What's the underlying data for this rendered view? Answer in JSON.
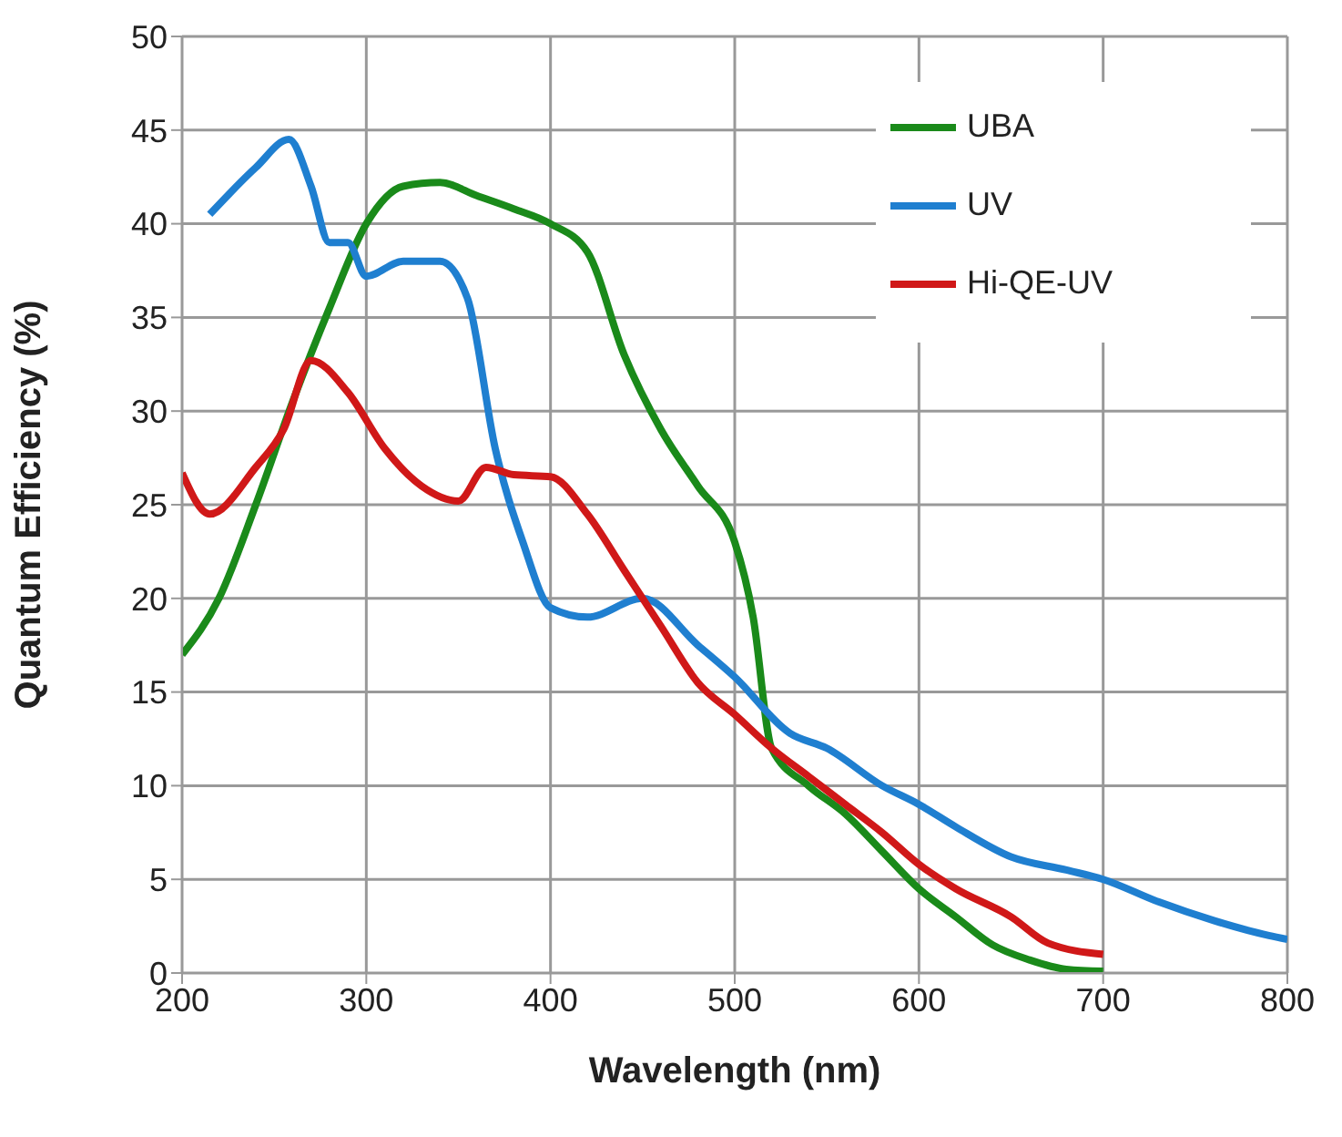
{
  "chart_data": {
    "type": "line",
    "xlabel": "Wavelength (nm)",
    "ylabel": "Quantum Efficiency (%)",
    "xlim": [
      200,
      800
    ],
    "xticks": [
      200,
      300,
      400,
      500,
      600,
      700,
      800
    ],
    "ylim": [
      0,
      50
    ],
    "yticks": [
      0,
      5,
      10,
      15,
      20,
      25,
      30,
      35,
      40,
      45,
      50
    ],
    "grid": true,
    "legend": "top right",
    "marker": "none",
    "line_style": "solid",
    "series": [
      {
        "name": "UBA",
        "color": "#1a8a1a",
        "x": [
          200,
          220,
          240,
          260,
          280,
          300,
          320,
          340,
          360,
          380,
          400,
          420,
          440,
          460,
          480,
          500,
          510,
          520,
          540,
          560,
          580,
          600,
          620,
          640,
          660,
          680,
          700
        ],
        "values": [
          17,
          20,
          25,
          30.5,
          35.5,
          40,
          42,
          42.2,
          41.5,
          40.8,
          40,
          38.5,
          33,
          29,
          26,
          23,
          19,
          12,
          10,
          8.5,
          6.5,
          4.5,
          3,
          1.5,
          0.7,
          0.2,
          0.1
        ]
      },
      {
        "name": "UV",
        "color": "#1f7fd0",
        "x": [
          215,
          240,
          258,
          270,
          280,
          290,
          300,
          320,
          340,
          355,
          370,
          385,
          400,
          420,
          450,
          480,
          500,
          530,
          550,
          580,
          600,
          620,
          650,
          680,
          700,
          730,
          760,
          790,
          800
        ],
        "values": [
          40.5,
          43,
          44.5,
          42,
          39,
          39,
          37.2,
          38,
          38,
          36,
          28,
          23,
          19.5,
          19,
          20,
          17.5,
          15.8,
          12.8,
          12,
          10,
          9,
          7.8,
          6.2,
          5.5,
          5,
          3.8,
          2.8,
          2,
          1.8
        ]
      },
      {
        "name": "Hi-QE-UV",
        "color": "#d01818",
        "x": [
          200,
          215,
          240,
          255,
          270,
          290,
          310,
          330,
          350,
          365,
          380,
          400,
          420,
          440,
          460,
          480,
          500,
          520,
          540,
          560,
          580,
          600,
          620,
          650,
          670,
          700
        ],
        "values": [
          26.7,
          24.5,
          27,
          29,
          32.7,
          31,
          28,
          26,
          25.2,
          27,
          26.6,
          26.5,
          24.5,
          21.5,
          18.5,
          15.5,
          13.8,
          12,
          10.5,
          9,
          7.5,
          5.8,
          4.5,
          3,
          1.6,
          1
        ]
      }
    ]
  }
}
